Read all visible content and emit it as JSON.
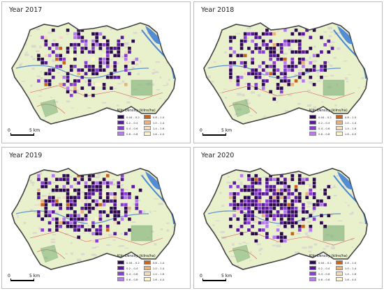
{
  "panels": [
    {
      "title": "Year 2017",
      "seed": 17,
      "density": 0.55
    },
    {
      "title": "Year 2018",
      "seed": 18,
      "density": 0.65
    },
    {
      "title": "Year 2019",
      "seed": 19,
      "density": 0.75
    },
    {
      "title": "Year 2020",
      "seed": 20,
      "density": 0.8
    }
  ],
  "legend": {
    "title": "Kiln Density (kilns/ha)",
    "classes_left": [
      {
        "label": "0.04 – 0.2",
        "color": "#2d0a4e"
      },
      {
        "label": "0.2 – 0.4",
        "color": "#5a189a"
      },
      {
        "label": "0.4 – 0.6",
        "color": "#8b3fd1"
      },
      {
        "label": "0.6 – 0.8",
        "color": "#b57bee"
      }
    ],
    "classes_right": [
      {
        "label": "0.8 – 1.0",
        "color": "#c8651b"
      },
      {
        "label": "1.0 – 1.4",
        "color": "#e8b27a"
      },
      {
        "label": "1.4 – 1.6",
        "color": "#f4dcc0"
      },
      {
        "label": "1.6 – 4.0",
        "color": "#fbf5c8"
      }
    ]
  },
  "scale": {
    "zero": "0",
    "label": "5 km"
  },
  "colors": {
    "land": "#e9f0cc",
    "urban": "#d8d3cc",
    "water": "#3a7bd5",
    "boundary": "#444444",
    "protected": "#6fa86a",
    "roads": "#d9534f"
  }
}
